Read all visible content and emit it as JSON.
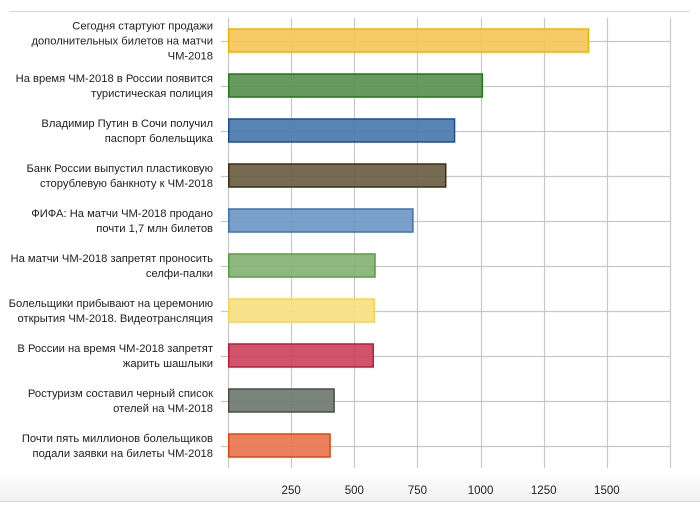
{
  "chart_data": {
    "type": "bar",
    "orientation": "horizontal",
    "title": "",
    "xlabel": "",
    "ylabel": "",
    "xlim": [
      0,
      1750
    ],
    "xticks": [
      250,
      500,
      750,
      1000,
      1250,
      1500
    ],
    "grid": true,
    "legend": "none",
    "categories": [
      [
        "Сегодня стартуют продажи",
        "дополнительных билетов на матчи",
        "ЧМ-2018"
      ],
      [
        "На время ЧМ-2018 в России появится",
        "туристическая полиция"
      ],
      [
        "Владимир Путин в Сочи получил",
        "паспорт болельщика"
      ],
      [
        "Банк России выпустил пластиковую",
        "сторублевую банкноту к ЧМ-2018"
      ],
      [
        "ФИФА: На матчи ЧМ-2018 продано",
        "почти 1,7 млн билетов"
      ],
      [
        "На матчи ЧМ-2018 запретят проносить",
        "селфи-палки"
      ],
      [
        "Болельщики прибывают на церемонию",
        "открытия ЧМ-2018. Видеотрансляция"
      ],
      [
        "В России на время ЧМ-2018 запретят",
        "жарить шашлыки"
      ],
      [
        "Ростуризм составил черный список",
        "отелей на ЧМ-2018"
      ],
      [
        "Почти пять миллионов болельщиков",
        "подали заявки на билеты ЧМ-2018"
      ]
    ],
    "values": [
      1430,
      1010,
      900,
      865,
      735,
      585,
      582,
      578,
      423,
      407
    ],
    "colors": [
      {
        "fill": "#f5c55a",
        "stroke": "#f0b400"
      },
      {
        "fill": "#5a9150",
        "stroke": "#217a17"
      },
      {
        "fill": "#4a79ad",
        "stroke": "#1a4f95"
      },
      {
        "fill": "#6b5d43",
        "stroke": "#3a2e14"
      },
      {
        "fill": "#6f98c6",
        "stroke": "#3f72ad"
      },
      {
        "fill": "#85b275",
        "stroke": "#5a9a47"
      },
      {
        "fill": "#f9df7f",
        "stroke": "#f7d358"
      },
      {
        "fill": "#cc4462",
        "stroke": "#c01a3a"
      },
      {
        "fill": "#6f7a70",
        "stroke": "#454f46"
      },
      {
        "fill": "#e8754f",
        "stroke": "#e0460f"
      }
    ]
  }
}
